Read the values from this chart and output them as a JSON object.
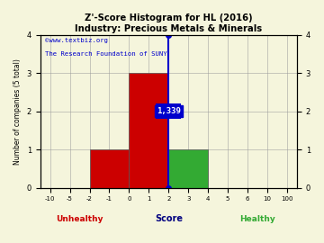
{
  "title_line1": "Z'-Score Histogram for HL (2016)",
  "title_line2": "Industry: Precious Metals & Minerals",
  "watermark1": "©www.textbiz.org",
  "watermark2": "The Research Foundation of SUNY",
  "xlabel": "Score",
  "ylabel": "Number of companies (5 total)",
  "xlabel_unhealthy": "Unhealthy",
  "xlabel_healthy": "Healthy",
  "tick_labels": [
    "-10",
    "-5",
    "-2",
    "-1",
    "0",
    "1",
    "2",
    "3",
    "4",
    "5",
    "6",
    "10",
    "100"
  ],
  "tick_positions": [
    0,
    1,
    2,
    3,
    4,
    5,
    6,
    7,
    8,
    9,
    10,
    11,
    12
  ],
  "bars": [
    {
      "from_tick": 2,
      "to_tick": 4,
      "height": 1,
      "color": "#cc0000"
    },
    {
      "from_tick": 4,
      "to_tick": 6,
      "height": 3,
      "color": "#cc0000"
    },
    {
      "from_tick": 6,
      "to_tick": 8,
      "height": 1,
      "color": "#33aa33"
    }
  ],
  "hl_tick_x": 6.0,
  "hl_dot_top_y": 4.0,
  "hl_dot_bot_y": 0.0,
  "hl_crossbar_y": 2.0,
  "hl_crossbar_half": 0.6,
  "score_label": "1,339",
  "ylim": [
    0,
    4
  ],
  "yticks": [
    0,
    1,
    2,
    3,
    4
  ],
  "xlim": [
    -0.5,
    12.5
  ],
  "background_color": "#f5f5dc",
  "grid_color": "#999999",
  "watermark_color": "#0000cc",
  "unhealthy_color": "#cc0000",
  "healthy_color": "#33aa33",
  "score_label_color": "#ffffff",
  "score_label_bg": "#0000cc",
  "title_color": "#000000",
  "unhealthy_label_tick": 1.5,
  "healthy_label_tick": 10.5
}
